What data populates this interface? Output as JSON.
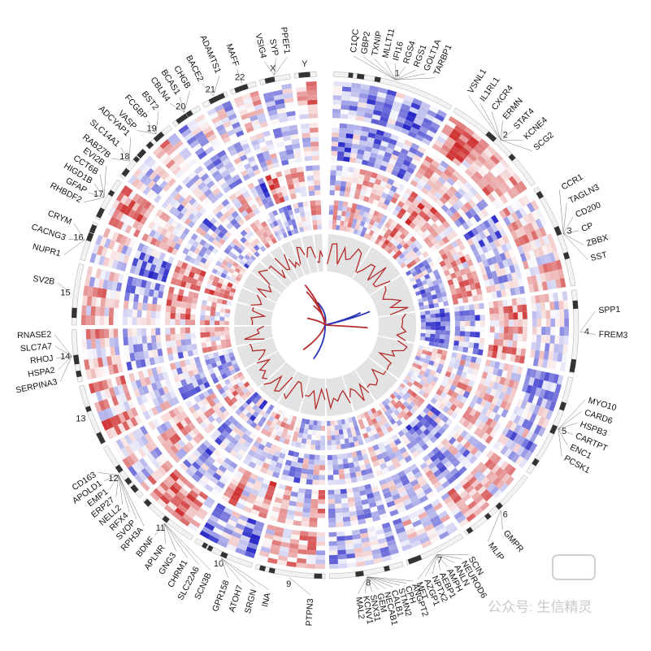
{
  "chromosomes": [
    {
      "label": "1",
      "genes": [
        {
          "name": "C1QC"
        },
        {
          "name": "GBP2"
        },
        {
          "name": "TXNIP"
        },
        {
          "name": "MLLT11"
        },
        {
          "name": "IFI16"
        },
        {
          "name": "RGS4"
        },
        {
          "name": "RGS1"
        },
        {
          "name": "GOLT1A"
        },
        {
          "name": "TARBP1"
        }
      ]
    },
    {
      "label": "2",
      "genes": [
        {
          "name": "VSNL1"
        },
        {
          "name": "IL1RL1"
        },
        {
          "name": "CXCR4"
        },
        {
          "name": "ERMN"
        },
        {
          "name": "STAT4"
        },
        {
          "name": "KCNE4"
        },
        {
          "name": "SCG2"
        }
      ]
    },
    {
      "label": "3",
      "genes": [
        {
          "name": "CCR1"
        },
        {
          "name": "TAGLN3"
        },
        {
          "name": "CD200"
        },
        {
          "name": "CP"
        },
        {
          "name": "ZBBX"
        },
        {
          "name": "SST",
          "color": "#2b35b8"
        }
      ]
    },
    {
      "label": "4",
      "genes": [
        {
          "name": "SPP1"
        },
        {
          "name": "FREM3"
        }
      ]
    },
    {
      "label": "5",
      "genes": [
        {
          "name": "MYO10"
        },
        {
          "name": "CARD6"
        },
        {
          "name": "HSPB3"
        },
        {
          "name": "CARTPT",
          "color": "#2b35b8"
        },
        {
          "name": "ENC1"
        },
        {
          "name": "PCSK1",
          "color": "#2b35b8"
        }
      ]
    },
    {
      "label": "6",
      "genes": [
        {
          "name": "GMPR"
        },
        {
          "name": "MLIP"
        }
      ]
    },
    {
      "label": "7",
      "genes": [
        {
          "name": "SCIN",
          "color": "#c8302c"
        },
        {
          "name": "NEUROD6"
        },
        {
          "name": "ANLN"
        },
        {
          "name": "AMPH"
        },
        {
          "name": "AEBP1"
        },
        {
          "name": "NPTX2",
          "color": "#2b35b8"
        },
        {
          "name": "AZGP1"
        },
        {
          "name": "MET"
        }
      ]
    },
    {
      "label": "8",
      "genes": [
        {
          "name": "ANGPT2"
        },
        {
          "name": "CPH"
        },
        {
          "name": "STMN2"
        },
        {
          "name": "CALB1"
        },
        {
          "name": "NECAB1"
        },
        {
          "name": "GEM"
        },
        {
          "name": "SNX31"
        },
        {
          "name": "KCNV1"
        },
        {
          "name": "MAL2"
        }
      ]
    },
    {
      "label": "9",
      "genes": [
        {
          "name": "PTPN3"
        }
      ]
    },
    {
      "label": "10",
      "genes": [
        {
          "name": "INA"
        },
        {
          "name": "SRGN"
        },
        {
          "name": "ATOH7"
        },
        {
          "name": "GPR158"
        }
      ]
    },
    {
      "label": "11",
      "genes": [
        {
          "name": "SCN3B"
        },
        {
          "name": "SLC22A6"
        },
        {
          "name": "CHRM1"
        },
        {
          "name": "GNG3"
        },
        {
          "name": "APLNR"
        },
        {
          "name": "BDNF"
        }
      ]
    },
    {
      "label": "12",
      "genes": [
        {
          "name": "RPH3A"
        },
        {
          "name": "SVOP"
        },
        {
          "name": "RFX4"
        },
        {
          "name": "NELL2"
        },
        {
          "name": "ERP27"
        },
        {
          "name": "EMP1"
        },
        {
          "name": "APOLD1"
        },
        {
          "name": "CD163",
          "color": "#c8302c"
        }
      ]
    },
    {
      "label": "13",
      "genes": []
    },
    {
      "label": "14",
      "genes": [
        {
          "name": "SERPINA3",
          "color": "#c8302c"
        },
        {
          "name": "HSPA2"
        },
        {
          "name": "RHOJ"
        },
        {
          "name": "SLC7A7"
        },
        {
          "name": "RNASE2"
        }
      ]
    },
    {
      "label": "15",
      "genes": [
        {
          "name": "SV2B"
        }
      ]
    },
    {
      "label": "16",
      "genes": [
        {
          "name": "NUPR1"
        },
        {
          "name": "CACNG3"
        },
        {
          "name": "CRYM"
        }
      ]
    },
    {
      "label": "17",
      "genes": [
        {
          "name": "RHBDF2"
        },
        {
          "name": "GFAP"
        },
        {
          "name": "HIGD1B"
        },
        {
          "name": "CCT6B"
        },
        {
          "name": "EVI2B"
        }
      ]
    },
    {
      "label": "18",
      "genes": [
        {
          "name": "RAB27B"
        },
        {
          "name": "SLC14A1"
        },
        {
          "name": "ADCYAP1"
        }
      ]
    },
    {
      "label": "19",
      "genes": [
        {
          "name": "VASP"
        },
        {
          "name": "FCGBP",
          "color": "#c8302c"
        },
        {
          "name": "BST2"
        }
      ]
    },
    {
      "label": "20",
      "genes": [
        {
          "name": "CBLN4"
        },
        {
          "name": "BCAS1"
        },
        {
          "name": "CHGB"
        }
      ]
    },
    {
      "label": "21",
      "genes": [
        {
          "name": "BACE2"
        },
        {
          "name": "ADAMTS1"
        }
      ]
    },
    {
      "label": "22",
      "genes": [
        {
          "name": "MAFF",
          "color": "#c8302c"
        }
      ]
    },
    {
      "label": "X",
      "genes": [
        {
          "name": "VSIG4"
        },
        {
          "name": "SYP"
        },
        {
          "name": "PPEF1",
          "color": "#2b35b8"
        }
      ]
    },
    {
      "label": "Y",
      "genes": []
    }
  ],
  "watermark": "公众号: 生信精灵"
}
